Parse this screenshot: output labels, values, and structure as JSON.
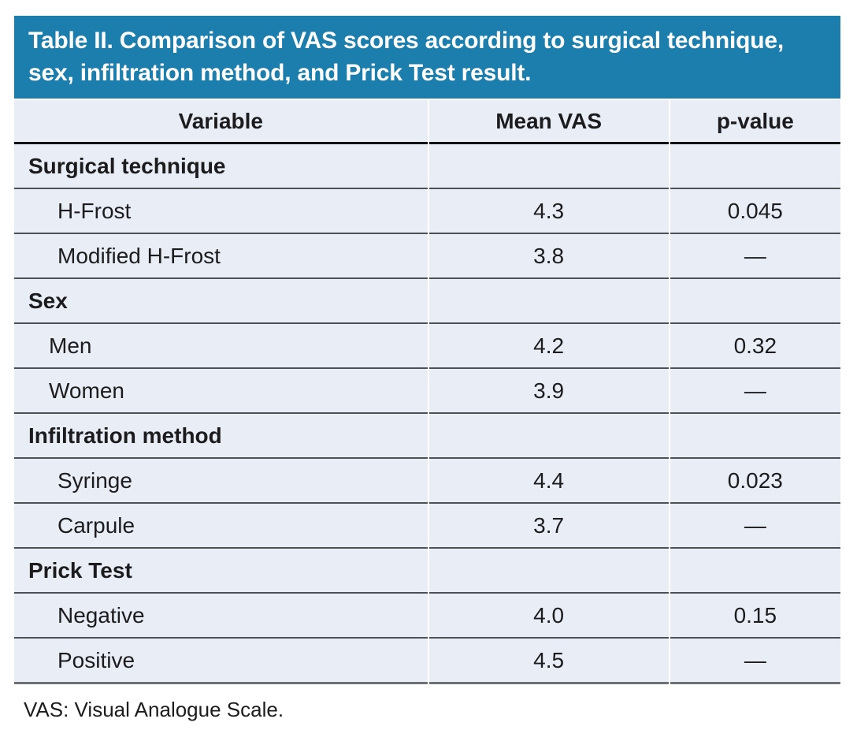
{
  "colors": {
    "title_bar_bg": "#1c7ead",
    "title_text": "#ffffff",
    "row_bg": "#e9eef6",
    "body_text": "#1c1c1e",
    "header_rule": "#111214",
    "row_rule": "#4c5156",
    "bottom_rule": "#6d7175"
  },
  "chart_data": {
    "type": "table",
    "title": "Table II. Comparison of VAS scores according to surgical technique, sex, infiltration method, and Prick Test result.",
    "columns": [
      "Variable",
      "Mean VAS",
      "p-value"
    ],
    "rows": [
      [
        "Surgical technique",
        "",
        ""
      ],
      [
        "H-Frost",
        "4.3",
        "0.045"
      ],
      [
        "Modified H-Frost",
        "3.8",
        "—"
      ],
      [
        "Sex",
        "",
        ""
      ],
      [
        "Men",
        "4.2",
        "0.32"
      ],
      [
        "Women",
        "3.9",
        "—"
      ],
      [
        "Infiltration method",
        "",
        ""
      ],
      [
        "Syringe",
        "4.4",
        "0.023"
      ],
      [
        "Carpule",
        "3.7",
        "—"
      ],
      [
        "Prick Test",
        "",
        ""
      ],
      [
        "Negative",
        "4.0",
        "0.15"
      ],
      [
        "Positive",
        "4.5",
        "—"
      ]
    ],
    "footnote": "VAS: Visual Analogue Scale."
  }
}
